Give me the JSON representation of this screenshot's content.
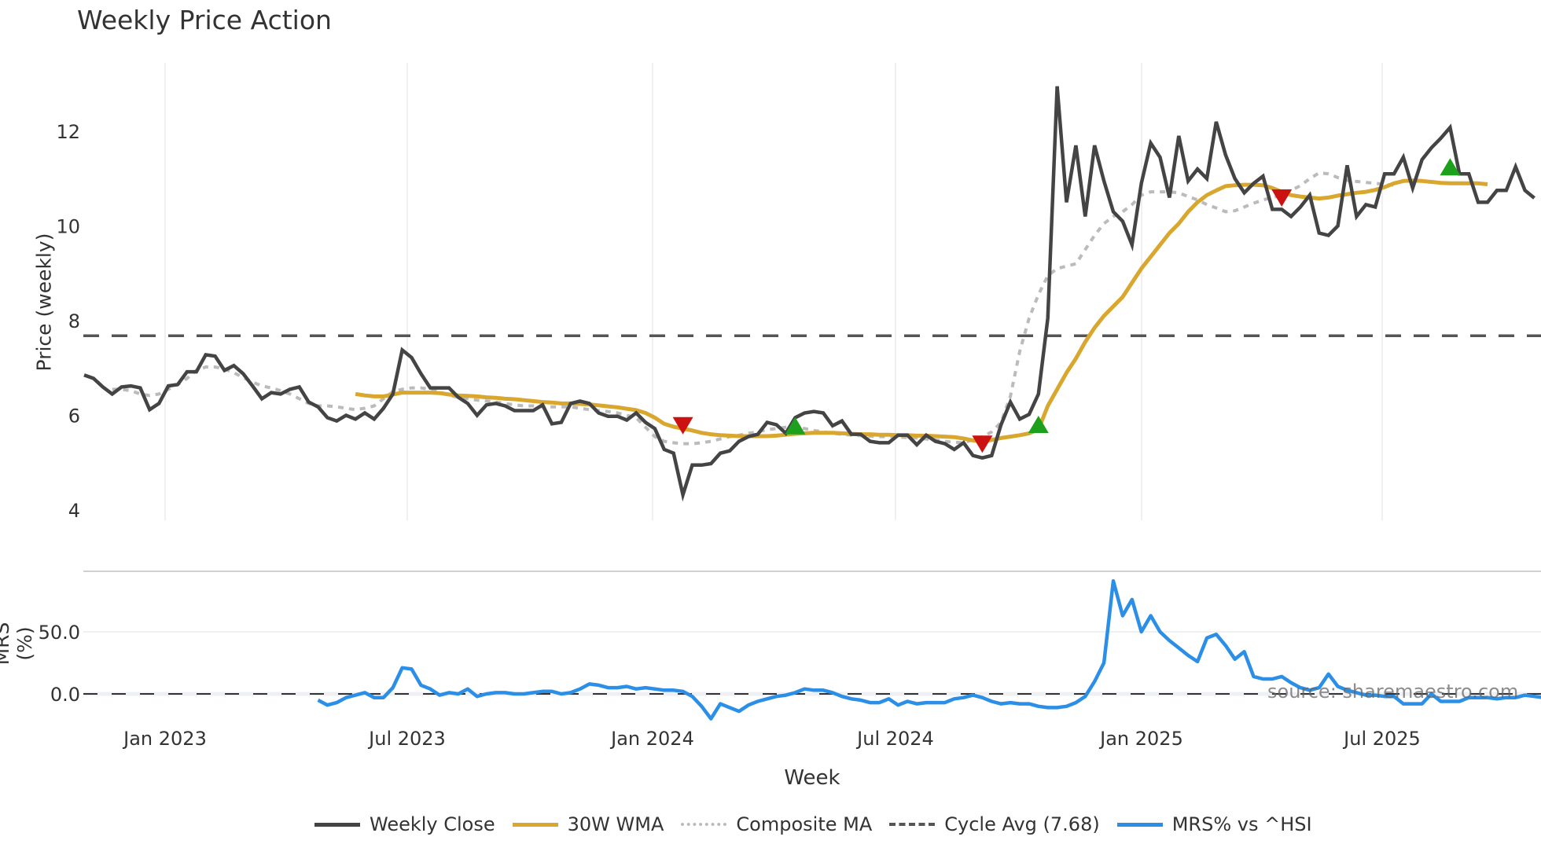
{
  "title": "Weekly Price Action",
  "chart_data": [
    {
      "type": "line",
      "panel": "price",
      "title": "Weekly Price Action",
      "xlabel": "Week",
      "ylabel": "Price (weekly)",
      "ylim": [
        3.8,
        13.3
      ],
      "yticks": [
        4,
        6,
        8,
        10,
        12
      ],
      "xticks": [
        "Jan 2023",
        "Jul 2023",
        "Jan 2024",
        "Jul 2024",
        "Jan 2025",
        "Jul 2025"
      ],
      "grid": "vertical",
      "x_start": "2022-11-04",
      "x_step": "1 week",
      "series": [
        {
          "name": "Weekly Close",
          "color": "#444444",
          "values": [
            6.85,
            6.78,
            6.6,
            6.45,
            6.6,
            6.62,
            6.58,
            6.12,
            6.25,
            6.62,
            6.65,
            6.92,
            6.92,
            7.28,
            7.25,
            6.95,
            7.05,
            6.88,
            6.62,
            6.35,
            6.48,
            6.45,
            6.55,
            6.6,
            6.28,
            6.18,
            5.95,
            5.88,
            6.0,
            5.92,
            6.05,
            5.92,
            6.15,
            6.45,
            7.38,
            7.22,
            6.88,
            6.58,
            6.58,
            6.58,
            6.38,
            6.25,
            6.0,
            6.22,
            6.25,
            6.2,
            6.1,
            6.1,
            6.1,
            6.22,
            5.82,
            5.85,
            6.25,
            6.3,
            6.25,
            6.05,
            5.98,
            5.98,
            5.9,
            6.05,
            5.85,
            5.72,
            5.28,
            5.2,
            4.32,
            4.95,
            4.95,
            4.98,
            5.2,
            5.25,
            5.45,
            5.55,
            5.6,
            5.85,
            5.8,
            5.62,
            5.95,
            6.05,
            6.08,
            6.05,
            5.78,
            5.88,
            5.6,
            5.6,
            5.45,
            5.42,
            5.42,
            5.58,
            5.58,
            5.38,
            5.58,
            5.45,
            5.4,
            5.28,
            5.42,
            5.15,
            5.1,
            5.15,
            5.8,
            6.28,
            5.92,
            6.02,
            6.45,
            8.05,
            12.95,
            10.5,
            11.7,
            10.2,
            11.7,
            10.95,
            10.3,
            10.1,
            9.6,
            10.9,
            11.75,
            11.45,
            10.6,
            11.9,
            10.95,
            11.2,
            11.0,
            12.2,
            11.5,
            11.0,
            10.7,
            10.9,
            11.05,
            10.35,
            10.35,
            10.2,
            10.4,
            10.65,
            9.85,
            9.8,
            10.0,
            11.28,
            10.2,
            10.45,
            10.4,
            11.1,
            11.1,
            11.45,
            10.8,
            11.4,
            11.65,
            11.85,
            12.08,
            11.1,
            11.1,
            10.5,
            10.5,
            10.75,
            10.75,
            11.25,
            10.75,
            10.59
          ]
        },
        {
          "name": "30W WMA",
          "color": "#D9A62E",
          "values": [
            null,
            null,
            null,
            null,
            null,
            null,
            null,
            null,
            null,
            null,
            null,
            null,
            null,
            null,
            null,
            null,
            null,
            null,
            null,
            null,
            null,
            null,
            null,
            null,
            null,
            null,
            null,
            null,
            null,
            6.45,
            6.42,
            6.4,
            6.4,
            6.44,
            6.48,
            6.48,
            6.48,
            6.48,
            6.47,
            6.44,
            6.42,
            6.41,
            6.4,
            6.38,
            6.37,
            6.35,
            6.34,
            6.32,
            6.3,
            6.28,
            6.27,
            6.25,
            6.25,
            6.24,
            6.23,
            6.21,
            6.19,
            6.17,
            6.14,
            6.11,
            6.05,
            5.95,
            5.82,
            5.76,
            5.72,
            5.68,
            5.63,
            5.6,
            5.58,
            5.57,
            5.56,
            5.56,
            5.56,
            5.56,
            5.57,
            5.59,
            5.61,
            5.62,
            5.63,
            5.63,
            5.63,
            5.62,
            5.61,
            5.6,
            5.6,
            5.59,
            5.59,
            5.58,
            5.58,
            5.57,
            5.57,
            5.56,
            5.55,
            5.54,
            5.51,
            5.47,
            5.44,
            5.48,
            5.52,
            5.55,
            5.58,
            5.62,
            5.7,
            6.2,
            6.55,
            6.9,
            7.2,
            7.55,
            7.85,
            8.1,
            8.3,
            8.5,
            8.8,
            9.1,
            9.35,
            9.6,
            9.85,
            10.05,
            10.3,
            10.5,
            10.65,
            10.75,
            10.84,
            10.86,
            10.87,
            10.87,
            10.86,
            10.8,
            10.72,
            10.65,
            10.62,
            10.6,
            10.58,
            10.6,
            10.64,
            10.67,
            10.7,
            10.72,
            10.76,
            10.82,
            10.9,
            10.95,
            10.96,
            10.95,
            10.93,
            10.91,
            10.9,
            10.9,
            10.9,
            10.9,
            10.88
          ]
        },
        {
          "name": "Composite MA",
          "color": "#BBBBBB",
          "values": [
            null,
            null,
            null,
            6.55,
            6.55,
            6.52,
            6.45,
            6.42,
            6.45,
            6.55,
            6.65,
            6.78,
            6.95,
            7.02,
            7.02,
            6.98,
            6.9,
            6.8,
            6.7,
            6.62,
            6.58,
            6.52,
            6.45,
            6.35,
            6.25,
            6.2,
            6.2,
            6.18,
            6.15,
            6.12,
            6.15,
            6.2,
            6.35,
            6.5,
            6.55,
            6.58,
            6.58,
            6.55,
            6.5,
            6.42,
            6.38,
            6.35,
            6.32,
            6.3,
            6.28,
            6.25,
            6.22,
            6.2,
            6.2,
            6.18,
            6.18,
            6.18,
            6.18,
            6.15,
            6.12,
            6.1,
            6.08,
            6.05,
            6.0,
            5.95,
            5.75,
            5.55,
            5.45,
            5.42,
            5.4,
            5.4,
            5.42,
            5.45,
            5.5,
            5.55,
            5.58,
            5.62,
            5.65,
            5.7,
            5.72,
            5.75,
            5.75,
            5.72,
            5.68,
            5.65,
            5.62,
            5.6,
            5.58,
            5.57,
            5.56,
            5.55,
            5.55,
            5.54,
            5.53,
            5.52,
            5.5,
            5.48,
            5.45,
            5.43,
            5.42,
            5.48,
            5.55,
            5.65,
            5.85,
            6.4,
            7.35,
            8.05,
            8.55,
            8.95,
            9.1,
            9.15,
            9.2,
            9.5,
            9.8,
            10.05,
            10.2,
            10.3,
            10.45,
            10.65,
            10.72,
            10.72,
            10.72,
            10.7,
            10.62,
            10.55,
            10.45,
            10.38,
            10.3,
            10.32,
            10.4,
            10.48,
            10.55,
            10.6,
            10.65,
            10.75,
            10.85,
            11.0,
            11.12,
            11.1,
            11.02,
            10.96,
            10.94,
            10.92,
            10.9,
            10.88,
            10.86
          ]
        },
        {
          "name": "Cycle Avg (7.68)",
          "color": "#555555",
          "style": "dashed",
          "constant": 7.68
        }
      ],
      "signals": [
        {
          "type": "sell",
          "week": 64,
          "y": 5.78,
          "color": "#CC1111"
        },
        {
          "type": "buy",
          "week": 76,
          "y": 5.78,
          "color": "#1DA11D"
        },
        {
          "type": "sell",
          "week": 96,
          "y": 5.39,
          "color": "#CC1111"
        },
        {
          "type": "buy",
          "week": 102,
          "y": 5.81,
          "color": "#1DA11D"
        },
        {
          "type": "sell",
          "week": 128,
          "y": 10.59,
          "color": "#CC1111"
        },
        {
          "type": "buy",
          "week": 146,
          "y": 11.25,
          "color": "#1DA11D"
        }
      ]
    },
    {
      "type": "line",
      "panel": "mrs",
      "ylabel": "MRS (%)",
      "yticks": [
        "0.0",
        "50.0"
      ],
      "ylim": [
        -25,
        95
      ],
      "zero_line": "dashed",
      "series": [
        {
          "name": "MRS% vs ^HSI",
          "color": "#2B8FE8",
          "start_week": 25,
          "values": [
            -5,
            -9,
            -7,
            -3,
            -1,
            1,
            -3,
            -3,
            5,
            21,
            20,
            7,
            4,
            -1,
            1,
            0,
            4,
            -2,
            0,
            1,
            1,
            0,
            0,
            1,
            2,
            2,
            0,
            1,
            4,
            8,
            7,
            5,
            5,
            6,
            4,
            5,
            4,
            3,
            3,
            2,
            -2,
            -10,
            -20,
            -8,
            -11,
            -14,
            -9,
            -6,
            -4,
            -2,
            -1,
            1,
            4,
            3,
            3,
            1,
            -2,
            -4,
            -5,
            -7,
            -7,
            -4,
            -9,
            -6,
            -8,
            -7,
            -7,
            -7,
            -4,
            -3,
            -1,
            -3,
            -6,
            -8,
            -7,
            -8,
            -8,
            -10,
            -11,
            -11,
            -10,
            -7,
            -2,
            10,
            25,
            91,
            63,
            76,
            50,
            63,
            50,
            43,
            37,
            31,
            26,
            45,
            48,
            39,
            28,
            34,
            14,
            12,
            12,
            14,
            9,
            5,
            3,
            5,
            16,
            6,
            3,
            1,
            -1,
            -1,
            -2,
            -2,
            -8,
            -8,
            -8,
            0,
            -6,
            -6,
            -6,
            -3,
            -3,
            -3,
            -4,
            -3,
            -3,
            -1,
            -2,
            -3,
            -5,
            -9,
            -13,
            -15,
            -15,
            -16,
            -12,
            -4,
            -10,
            -12,
            -14
          ]
        }
      ]
    }
  ],
  "axes": {
    "price_ylabel": "Price (weekly)",
    "price_yticks": [
      "4",
      "6",
      "8",
      "10",
      "12"
    ],
    "mrs_ylabel": "MRS (%)",
    "mrs_yticks": [
      "0.0",
      "50.0"
    ],
    "xticks": [
      "Jan 2023",
      "Jul 2023",
      "Jan 2024",
      "Jul 2024",
      "Jan 2025",
      "Jul 2025"
    ],
    "xlabel": "Week"
  },
  "legend": [
    {
      "label": "Weekly Close",
      "color": "#444444",
      "style": "solid"
    },
    {
      "label": "30W WMA",
      "color": "#D9A62E",
      "style": "solid"
    },
    {
      "label": "Composite MA",
      "color": "#BBBBBB",
      "style": "dotted"
    },
    {
      "label": "Cycle Avg (7.68)",
      "color": "#555555",
      "style": "dashed"
    },
    {
      "label": "MRS% vs ^HSI",
      "color": "#2B8FE8",
      "style": "solid"
    }
  ],
  "watermark": "source: sharemaestro.com"
}
